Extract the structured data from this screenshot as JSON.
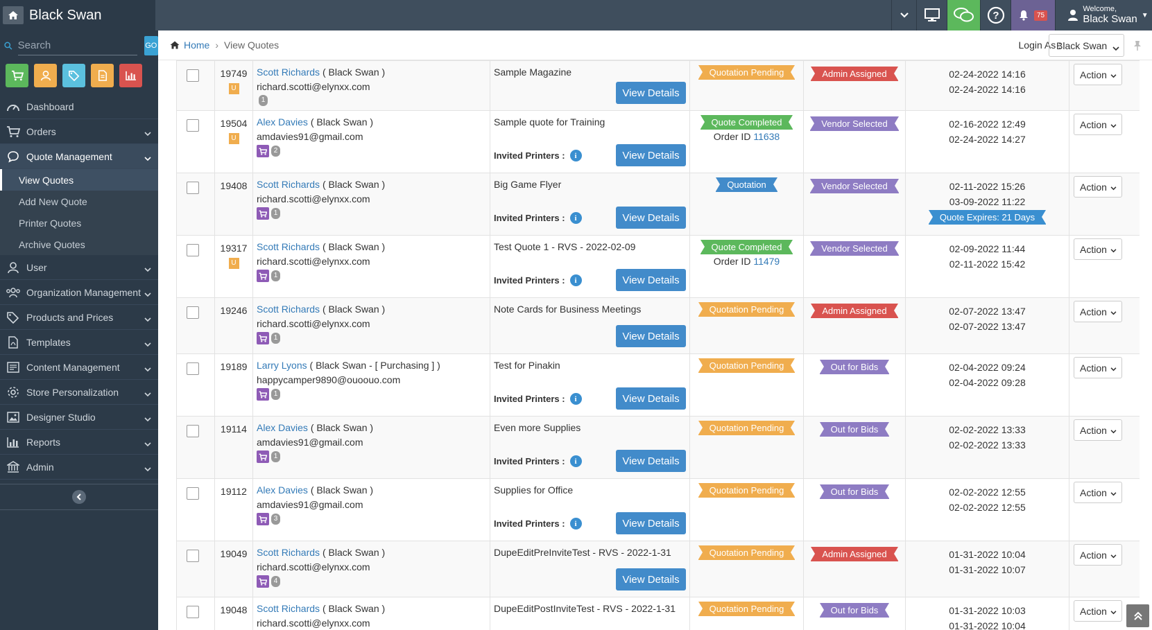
{
  "app": {
    "title": "Black Swan"
  },
  "topbar": {
    "notification_count": "75",
    "welcome_label": "Welcome,",
    "user_name": "Black Swan",
    "colors": {
      "chat": "#5cb85c",
      "bell": "#6c6294",
      "badge": "#d9534f"
    }
  },
  "sidebar": {
    "search_placeholder": "Search",
    "go_label": "GO",
    "quick_buttons": [
      {
        "icon": "cart-icon",
        "color": "#5cb85c"
      },
      {
        "icon": "user-icon",
        "color": "#f0ad4e"
      },
      {
        "icon": "tags-icon",
        "color": "#5bc0de"
      },
      {
        "icon": "document-icon",
        "color": "#f0ad4e"
      },
      {
        "icon": "bar-chart-icon",
        "color": "#d9534f"
      }
    ],
    "items": [
      {
        "label": "Dashboard",
        "icon": "dashboard-icon"
      },
      {
        "label": "Orders",
        "icon": "cart-icon"
      },
      {
        "label": "Quote Management",
        "icon": "comment-icon"
      },
      {
        "label": "User",
        "icon": "user-icon"
      },
      {
        "label": "Organization Management",
        "icon": "users-icon"
      },
      {
        "label": "Products and Prices",
        "icon": "tags-icon"
      },
      {
        "label": "Templates",
        "icon": "file-pdf-icon"
      },
      {
        "label": "Content Management",
        "icon": "content-icon"
      },
      {
        "label": "Store Personalization",
        "icon": "gear-icon"
      },
      {
        "label": "Designer Studio",
        "icon": "image-icon"
      },
      {
        "label": "Reports",
        "icon": "bar-chart-icon"
      },
      {
        "label": "Admin",
        "icon": "bank-icon"
      }
    ],
    "quote_subitems": [
      {
        "label": "View Quotes"
      },
      {
        "label": "Add New Quote"
      },
      {
        "label": "Printer Quotes"
      },
      {
        "label": "Archive Quotes"
      }
    ]
  },
  "breadcrumb": {
    "home": "Home",
    "current": "View Quotes"
  },
  "login_as": {
    "label": "Login As :",
    "value": "Black Swan"
  },
  "table": {
    "view_details_label": "View Details",
    "invited_label": "Invited Printers :",
    "action_label": "Action",
    "order_id_label": "Order ID",
    "rows": [
      {
        "id": "19749",
        "u_badge": "U",
        "customer": "Scott Richards",
        "org": "( Black Swan )",
        "email": "richard.scotti@elynxx.com",
        "cart": false,
        "count": "1",
        "quote": "Sample Magazine",
        "invited": false,
        "status": "Quotation Pending",
        "status_type": "pending",
        "order_id": "",
        "vendor": "Admin Assigned",
        "vendor_type": "admin",
        "date1": "02-24-2022 14:16",
        "date2": "02-24-2022 14:16",
        "expires": "",
        "height": 72
      },
      {
        "id": "19504",
        "u_badge": "U",
        "customer": "Alex Davies",
        "org": "( Black Swan )",
        "email": "amdavies91@gmail.com",
        "cart": true,
        "count": "2",
        "quote": "Sample quote for Training",
        "invited": true,
        "status": "Quote Completed",
        "status_type": "completed",
        "order_id": "11638",
        "vendor": "Vendor Selected",
        "vendor_type": "vendor",
        "date1": "02-16-2022 12:49",
        "date2": "02-24-2022 14:27",
        "expires": "",
        "height": 90
      },
      {
        "id": "19408",
        "u_badge": "",
        "customer": "Scott Richards",
        "org": "( Black Swan )",
        "email": "richard.scotti@elynxx.com",
        "cart": true,
        "count": "1",
        "quote": "Big Game Flyer",
        "invited": true,
        "status": "Quotation",
        "status_type": "quotation",
        "order_id": "",
        "vendor": "Vendor Selected",
        "vendor_type": "vendor",
        "date1": "02-11-2022 15:26",
        "date2": "03-09-2022 11:22",
        "expires": "Quote Expires: 21 Days",
        "height": 90
      },
      {
        "id": "19317",
        "u_badge": "U",
        "customer": "Scott Richards",
        "org": "( Black Swan )",
        "email": "richard.scotti@elynxx.com",
        "cart": true,
        "count": "1",
        "quote": "Test Quote 1 - RVS - 2022-02-09",
        "invited": true,
        "status": "Quote Completed",
        "status_type": "completed",
        "order_id": "11479",
        "vendor": "Vendor Selected",
        "vendor_type": "vendor",
        "date1": "02-09-2022 11:44",
        "date2": "02-11-2022 15:42",
        "expires": "",
        "height": 90
      },
      {
        "id": "19246",
        "u_badge": "",
        "customer": "Scott Richards",
        "org": "( Black Swan )",
        "email": "richard.scotti@elynxx.com",
        "cart": true,
        "count": "1",
        "quote": "Note Cards for Business Meetings",
        "invited": false,
        "status": "Quotation Pending",
        "status_type": "pending",
        "order_id": "",
        "vendor": "Admin Assigned",
        "vendor_type": "admin",
        "date1": "02-07-2022 13:47",
        "date2": "02-07-2022 13:47",
        "expires": "",
        "height": 81
      },
      {
        "id": "19189",
        "u_badge": "",
        "customer": "Larry Lyons",
        "org": "( Black Swan - [ Purchasing ] )",
        "email": "happycamper9890@ouoouo.com",
        "cart": true,
        "count": "1",
        "quote": "Test for Pinakin",
        "invited": true,
        "status": "Quotation Pending",
        "status_type": "pending",
        "order_id": "",
        "vendor": "Out for Bids",
        "vendor_type": "bids",
        "date1": "02-04-2022 09:24",
        "date2": "02-04-2022 09:28",
        "expires": "",
        "height": 90
      },
      {
        "id": "19114",
        "u_badge": "",
        "customer": "Alex Davies",
        "org": "( Black Swan )",
        "email": "amdavies91@gmail.com",
        "cart": true,
        "count": "1",
        "quote": "Even more Supplies",
        "invited": true,
        "status": "Quotation Pending",
        "status_type": "pending",
        "order_id": "",
        "vendor": "Out for Bids",
        "vendor_type": "bids",
        "date1": "02-02-2022 13:33",
        "date2": "02-02-2022 13:33",
        "expires": "",
        "height": 90
      },
      {
        "id": "19112",
        "u_badge": "",
        "customer": "Alex Davies",
        "org": "( Black Swan )",
        "email": "amdavies91@gmail.com",
        "cart": true,
        "count": "3",
        "quote": "Supplies for Office",
        "invited": true,
        "status": "Quotation Pending",
        "status_type": "pending",
        "order_id": "",
        "vendor": "Out for Bids",
        "vendor_type": "bids",
        "date1": "02-02-2022 12:55",
        "date2": "02-02-2022 12:55",
        "expires": "",
        "height": 90
      },
      {
        "id": "19049",
        "u_badge": "",
        "customer": "Scott Richards",
        "org": "( Black Swan )",
        "email": "richard.scotti@elynxx.com",
        "cart": true,
        "count": "4",
        "quote": "DupeEditPreInviteTest - RVS - 2022-1-31",
        "invited": false,
        "status": "Quotation Pending",
        "status_type": "pending",
        "order_id": "",
        "vendor": "Admin Assigned",
        "vendor_type": "admin",
        "date1": "01-31-2022 10:04",
        "date2": "01-31-2022 10:07",
        "expires": "",
        "height": 81
      },
      {
        "id": "19048",
        "u_badge": "",
        "customer": "Scott Richards",
        "org": "( Black Swan )",
        "email": "richard.scotti@elynxx.com",
        "cart": false,
        "count": "",
        "quote": "DupeEditPostInviteTest - RVS - 2022-1-31",
        "invited": false,
        "status": "Quotation Pending",
        "status_type": "pending",
        "order_id": "",
        "vendor": "Out for Bids",
        "vendor_type": "bids",
        "date1": "01-31-2022 10:03",
        "date2": "01-31-2022 10:04",
        "expires": "",
        "height": 60
      }
    ]
  }
}
